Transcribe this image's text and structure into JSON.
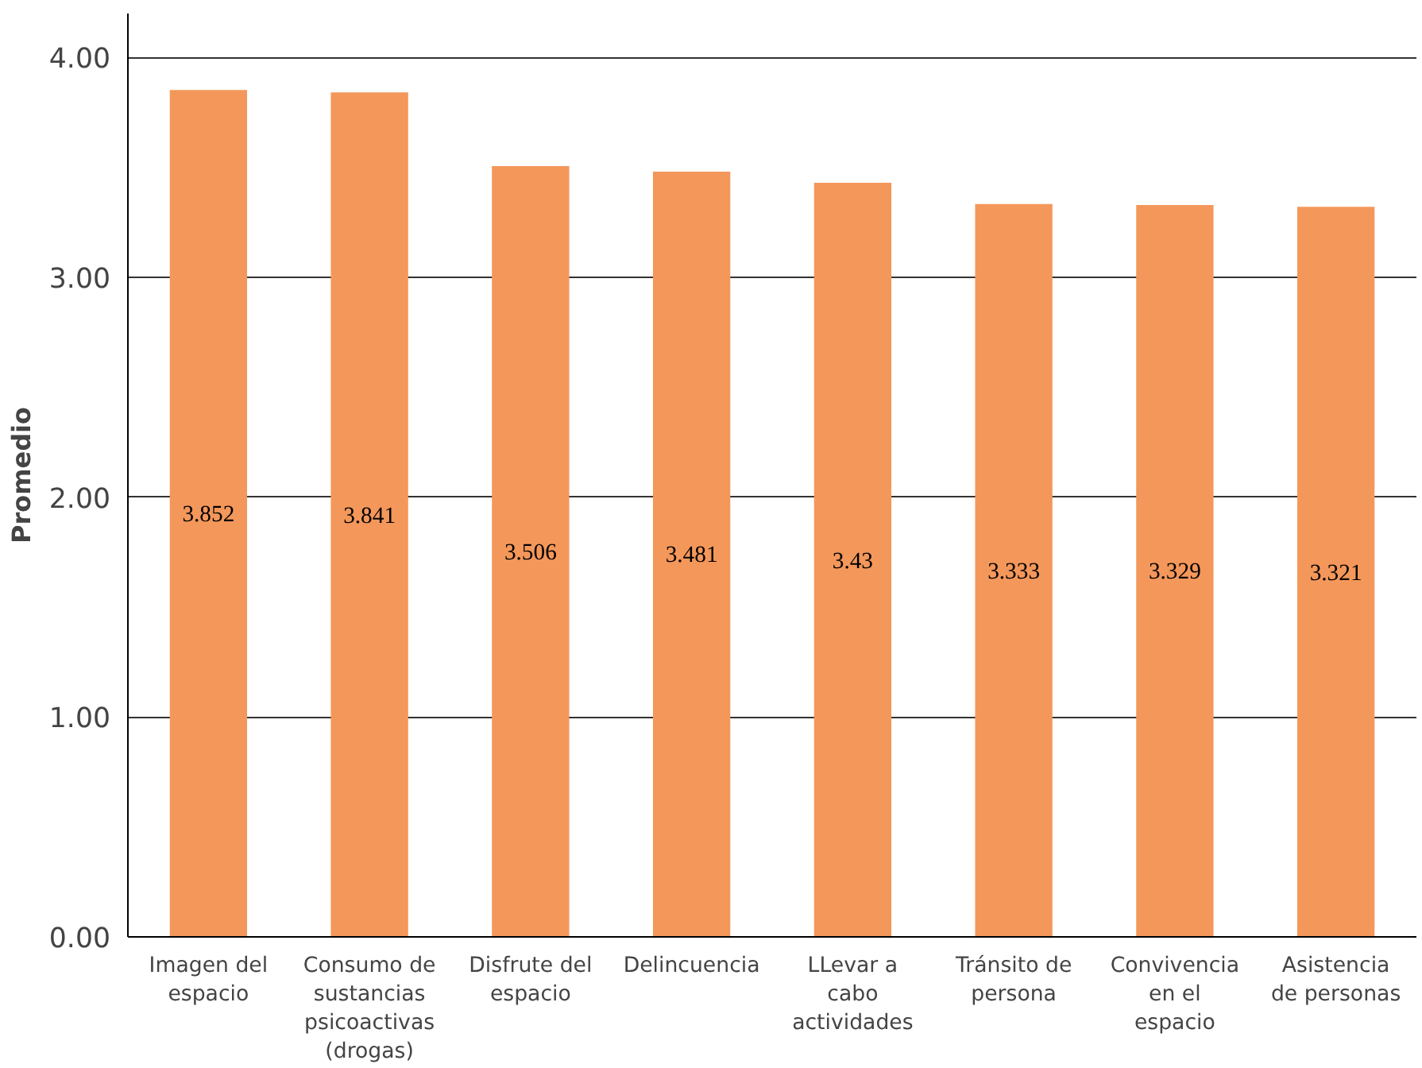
{
  "chart_data": {
    "type": "bar",
    "ylabel": "Promedio",
    "categories": [
      "Imagen del espacio",
      "Consumo de sustancias psicoactivas (drogas)",
      "Disfrute del espacio",
      "Delincuencia",
      "LLevar a cabo actividades",
      "Tránsito de persona",
      "Convivencia en el espacio",
      "Asistencia de personas"
    ],
    "values": [
      3.852,
      3.841,
      3.506,
      3.481,
      3.43,
      3.333,
      3.329,
      3.321
    ],
    "color": "#f4975a",
    "data_labels": true,
    "ylim": [
      0,
      4.2
    ],
    "yticks": [
      {
        "value": 0,
        "label": "0.00"
      },
      {
        "value": 1,
        "label": "1.00"
      },
      {
        "value": 2,
        "label": "2.00"
      },
      {
        "value": 3,
        "label": "3.00"
      },
      {
        "value": 4,
        "label": "4.00"
      }
    ],
    "grid": "y"
  }
}
